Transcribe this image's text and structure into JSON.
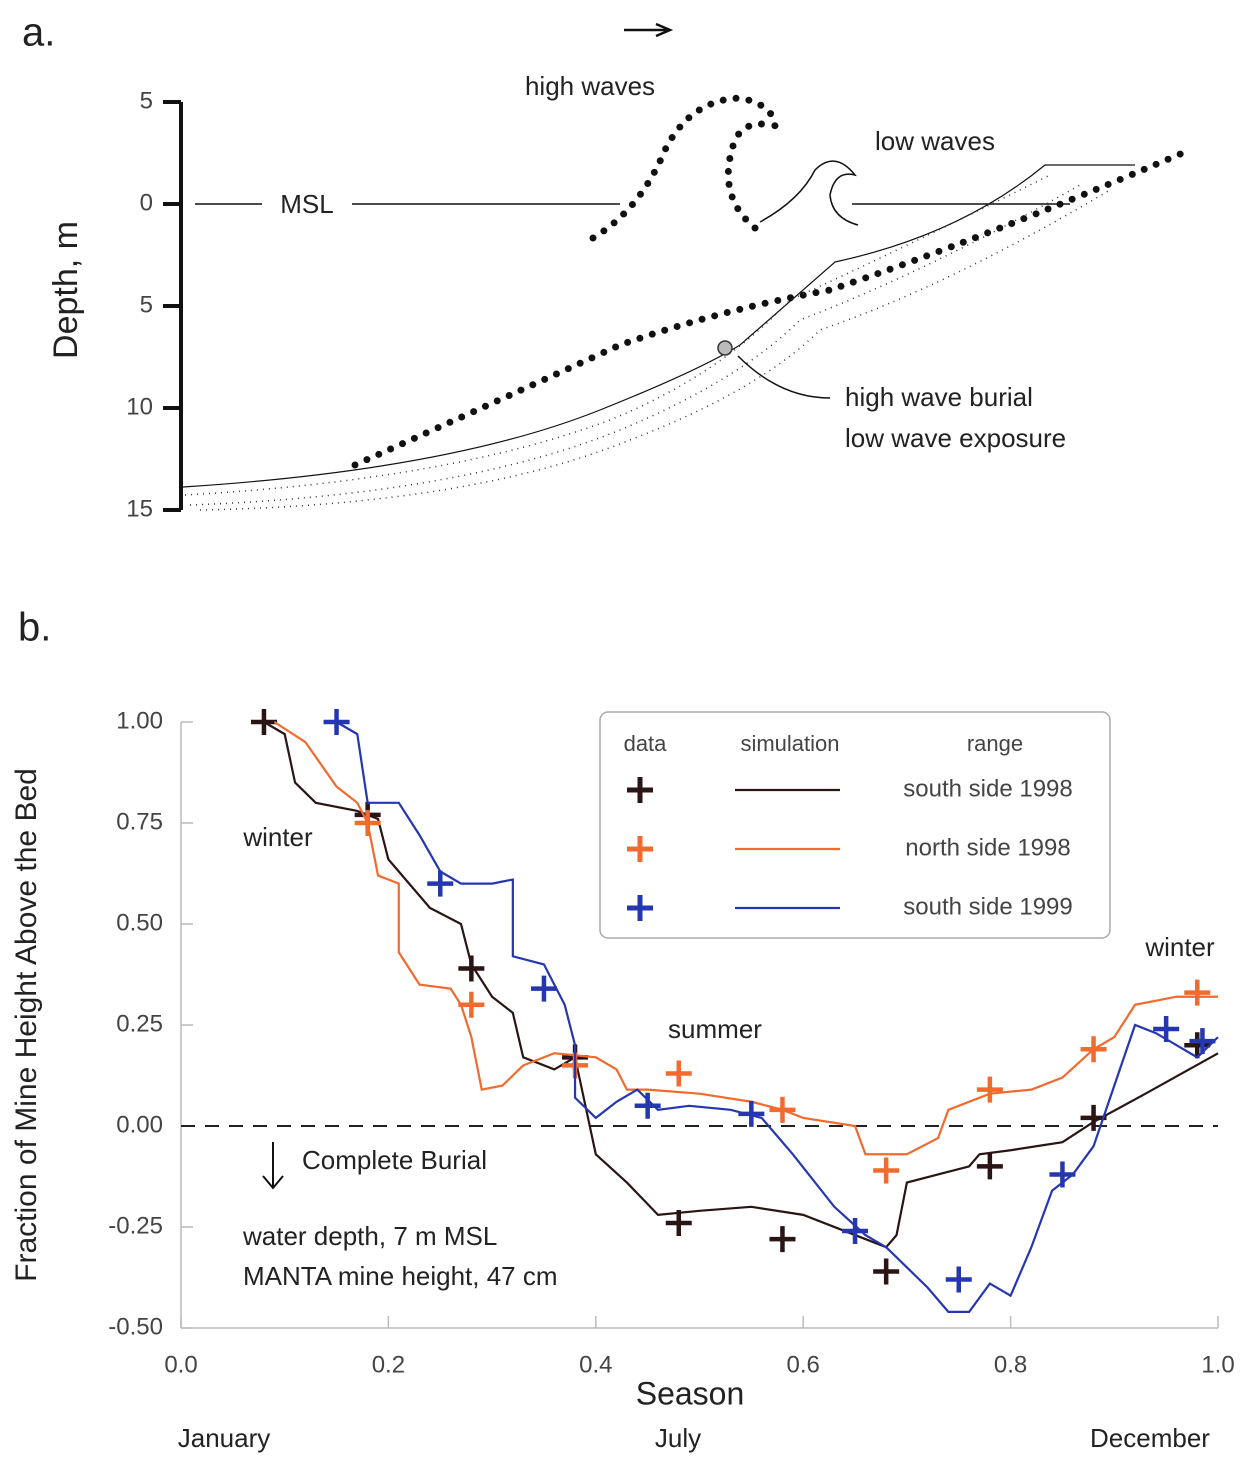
{
  "chart_data": [
    {
      "type": "diagram",
      "panel": "a.",
      "ylabel": "Depth, m",
      "ylim": [
        -5,
        15
      ],
      "yticks": [
        {
          "value": -5,
          "label": "5"
        },
        0,
        5,
        10,
        15
      ],
      "annotations": [
        "high waves",
        "low waves",
        "MSL",
        "high wave burial",
        "low wave exposure"
      ]
    },
    {
      "type": "line",
      "panel": "b.",
      "xlabel": "Season",
      "ylabel": "Fraction of Mine Height Above the Bed",
      "xlim": [
        0,
        1
      ],
      "xticks": [
        {
          "value": 0,
          "label": "0.0"
        },
        {
          "value": 0.2,
          "label": "0.2"
        },
        {
          "value": 0.4,
          "label": "0.4"
        },
        {
          "value": 0.6,
          "label": "0.6"
        },
        {
          "value": 0.8,
          "label": "0.8"
        },
        {
          "value": 1,
          "label": "1.0"
        }
      ],
      "ylim": [
        -0.5,
        1
      ],
      "yticks": [
        {
          "value": -0.5,
          "label": "-0.50"
        },
        {
          "value": -0.25,
          "label": "-0.25"
        },
        {
          "value": 0,
          "label": "0.00"
        },
        {
          "value": 0.25,
          "label": "0.25"
        },
        {
          "value": 0.5,
          "label": "0.50"
        },
        {
          "value": 0.75,
          "label": "0.75"
        },
        {
          "value": 1,
          "label": "1.00"
        }
      ],
      "legend_headers": [
        "data",
        "simulation",
        "range"
      ],
      "annotations": [
        "winter",
        "winter",
        "summer",
        "Complete Burial",
        "water depth, 7 m MSL",
        "MANTA mine height, 47 cm",
        "January",
        "July",
        "December"
      ],
      "series": [
        {
          "name": "south side 1998",
          "color": "#2a1414",
          "x": [
            0.08,
            0.18,
            0.28,
            0.38,
            0.48,
            0.58,
            0.68,
            0.78,
            0.88,
            0.98
          ],
          "values": [
            1.0,
            0.77,
            0.39,
            0.17,
            -0.24,
            -0.28,
            -0.36,
            -0.1,
            0.02,
            0.2
          ],
          "sim_x": [
            0.08,
            0.1,
            0.11,
            0.13,
            0.17,
            0.19,
            0.2,
            0.22,
            0.24,
            0.27,
            0.28,
            0.3,
            0.32,
            0.33,
            0.36,
            0.38,
            0.39,
            0.4,
            0.43,
            0.46,
            0.5,
            0.55,
            0.6,
            0.65,
            0.68,
            0.69,
            0.7,
            0.73,
            0.76,
            0.77,
            0.8,
            0.85,
            0.88,
            0.93,
            1.0
          ],
          "sim_values": [
            1.0,
            0.97,
            0.85,
            0.8,
            0.78,
            0.76,
            0.66,
            0.6,
            0.54,
            0.5,
            0.4,
            0.32,
            0.28,
            0.17,
            0.14,
            0.17,
            0.05,
            -0.07,
            -0.14,
            -0.22,
            -0.21,
            -0.2,
            -0.22,
            -0.27,
            -0.3,
            -0.27,
            -0.14,
            -0.12,
            -0.1,
            -0.07,
            -0.06,
            -0.04,
            0.01,
            0.08,
            0.18
          ]
        },
        {
          "name": "north side 1998",
          "color": "#f26a2e",
          "x": [
            0.18,
            0.28,
            0.38,
            0.48,
            0.58,
            0.68,
            0.78,
            0.88,
            0.98
          ],
          "values": [
            0.75,
            0.3,
            0.15,
            0.13,
            0.04,
            -0.11,
            0.09,
            0.19,
            0.33
          ],
          "sim_x": [
            0.09,
            0.12,
            0.15,
            0.17,
            0.18,
            0.19,
            0.21,
            0.21,
            0.23,
            0.26,
            0.27,
            0.28,
            0.29,
            0.31,
            0.33,
            0.36,
            0.4,
            0.42,
            0.43,
            0.45,
            0.5,
            0.55,
            0.58,
            0.6,
            0.65,
            0.66,
            0.7,
            0.73,
            0.74,
            0.78,
            0.82,
            0.85,
            0.88,
            0.9,
            0.92,
            0.96,
            1.0
          ],
          "sim_values": [
            1.0,
            0.95,
            0.84,
            0.8,
            0.75,
            0.62,
            0.6,
            0.43,
            0.35,
            0.34,
            0.3,
            0.22,
            0.09,
            0.1,
            0.15,
            0.18,
            0.17,
            0.14,
            0.09,
            0.09,
            0.08,
            0.06,
            0.04,
            0.02,
            0.0,
            -0.07,
            -0.07,
            -0.03,
            0.04,
            0.08,
            0.09,
            0.12,
            0.19,
            0.22,
            0.3,
            0.32,
            0.32
          ]
        },
        {
          "name": "south side 1999",
          "color": "#2437b0",
          "x": [
            0.15,
            0.25,
            0.35,
            0.45,
            0.55,
            0.65,
            0.75,
            0.85,
            0.95,
            0.985
          ],
          "values": [
            1.0,
            0.6,
            0.34,
            0.05,
            0.03,
            -0.26,
            -0.38,
            -0.12,
            0.24,
            0.21
          ],
          "sim_x": [
            0.15,
            0.17,
            0.18,
            0.21,
            0.23,
            0.25,
            0.27,
            0.3,
            0.32,
            0.32,
            0.35,
            0.37,
            0.38,
            0.38,
            0.4,
            0.42,
            0.44,
            0.46,
            0.49,
            0.53,
            0.56,
            0.59,
            0.63,
            0.66,
            0.68,
            0.72,
            0.74,
            0.76,
            0.78,
            0.8,
            0.82,
            0.84,
            0.86,
            0.88,
            0.9,
            0.92,
            0.94,
            0.96,
            0.98,
            1.0
          ],
          "sim_values": [
            1.0,
            0.97,
            0.8,
            0.8,
            0.72,
            0.63,
            0.6,
            0.6,
            0.61,
            0.42,
            0.4,
            0.3,
            0.2,
            0.07,
            0.02,
            0.06,
            0.09,
            0.04,
            0.05,
            0.04,
            0.02,
            -0.07,
            -0.2,
            -0.27,
            -0.3,
            -0.4,
            -0.46,
            -0.46,
            -0.39,
            -0.42,
            -0.3,
            -0.16,
            -0.12,
            -0.05,
            0.1,
            0.25,
            0.23,
            0.2,
            0.17,
            0.22
          ]
        }
      ]
    }
  ]
}
